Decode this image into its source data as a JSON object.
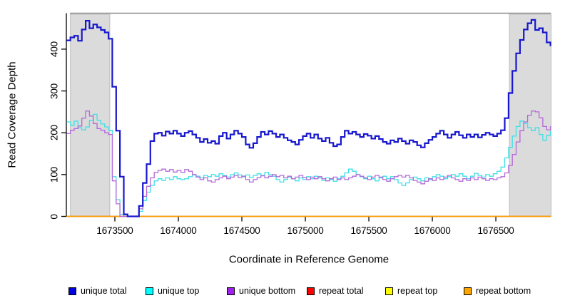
{
  "chart_data": {
    "type": "line",
    "title": "",
    "xlabel": "Coordinate in Reference Genome",
    "ylabel": "Read Coverage Depth",
    "xlim": [
      1673118,
      1676935
    ],
    "ylim": [
      0,
      486
    ],
    "x_ticks": [
      1673500,
      1674000,
      1674500,
      1675000,
      1675500,
      1676000,
      1676500
    ],
    "y_ticks": [
      0,
      100,
      200,
      300,
      400
    ],
    "grid": false,
    "legend_position": "bottom",
    "top_border_color": "#8c8c8c",
    "axis_color": "#000000",
    "shaded_regions": [
      {
        "x_start": 1673150,
        "x_end": 1673460,
        "fill": "#dbdbdb",
        "stroke": "#bdbdbd"
      },
      {
        "x_start": 1676607,
        "x_end": 1676935,
        "fill": "#dbdbdb",
        "stroke": "#bdbdbd"
      }
    ],
    "x_start": 1673120,
    "x_step": 30,
    "series": [
      {
        "name": "repeat total",
        "color": "#e00000",
        "width": 1.2,
        "flat_value": 0
      },
      {
        "name": "repeat top",
        "color": "#ffee00",
        "width": 1.2,
        "flat_value": 0
      },
      {
        "name": "repeat bottom",
        "color": "#ff9a00",
        "width": 1.6,
        "flat_value": 0
      },
      {
        "name": "unique top",
        "color": "#3fdfe8",
        "width": 1.3,
        "values": [
          226,
          218,
          228,
          212,
          207,
          214,
          230,
          244,
          230,
          221,
          214,
          206,
          95,
          40,
          5,
          0,
          0,
          0,
          0,
          12,
          38,
          58,
          74,
          85,
          90,
          86,
          92,
          88,
          95,
          90,
          88,
          90,
          95,
          99,
          96,
          92,
          98,
          95,
          100,
          96,
          102,
          98,
          94,
          100,
          104,
          99,
          95,
          99,
          93,
          98,
          102,
          98,
          105,
          100,
          96,
          88,
          82,
          88,
          94,
          90,
          85,
          92,
          88,
          95,
          90,
          96,
          92,
          86,
          92,
          88,
          84,
          90,
          96,
          104,
          113,
          108,
          100,
          95,
          90,
          96,
          90,
          85,
          92,
          96,
          90,
          95,
          88,
          80,
          74,
          80,
          88,
          94,
          90,
          85,
          92,
          88,
          95,
          100,
          96,
          90,
          95,
          100,
          96,
          102,
          96,
          90,
          96,
          103,
          98,
          94,
          100,
          96,
          102,
          108,
          118,
          140,
          165,
          192,
          215,
          228,
          222,
          212,
          205,
          212,
          196,
          182,
          194,
          204
        ]
      },
      {
        "name": "unique bottom",
        "color": "#b368d9",
        "width": 1.3,
        "values": [
          198,
          206,
          210,
          216,
          235,
          252,
          240,
          222,
          210,
          206,
          200,
          196,
          85,
          30,
          0,
          0,
          0,
          0,
          0,
          18,
          48,
          72,
          92,
          105,
          110,
          113,
          108,
          112,
          106,
          110,
          105,
          112,
          108,
          100,
          94,
          88,
          92,
          85,
          82,
          88,
          92,
          96,
          90,
          94,
          98,
          93,
          96,
          88,
          82,
          88,
          93,
          97,
          92,
          96,
          100,
          95,
          98,
          92,
          96,
          90,
          94,
          98,
          93,
          88,
          94,
          90,
          95,
          90,
          85,
          90,
          94,
          88,
          92,
          88,
          92,
          96,
          100,
          96,
          92,
          88,
          94,
          98,
          94,
          88,
          84,
          90,
          95,
          98,
          94,
          98,
          92,
          86,
          82,
          78,
          84,
          90,
          86,
          92,
          88,
          94,
          98,
          92,
          88,
          84,
          90,
          86,
          92,
          88,
          94,
          90,
          86,
          90,
          88,
          92,
          95,
          104,
          122,
          148,
          178,
          205,
          226,
          242,
          252,
          250,
          236,
          215,
          207,
          216
        ]
      },
      {
        "name": "unique total",
        "color": "#1717ce",
        "width": 2.2,
        "values": [
          421,
          428,
          432,
          420,
          447,
          468,
          450,
          459,
          452,
          446,
          440,
          425,
          310,
          205,
          95,
          5,
          0,
          0,
          0,
          25,
          80,
          125,
          180,
          198,
          200,
          193,
          203,
          198,
          205,
          198,
          192,
          200,
          204,
          196,
          188,
          178,
          185,
          176,
          180,
          174,
          192,
          200,
          186,
          196,
          205,
          198,
          190,
          172,
          164,
          175,
          190,
          202,
          196,
          204,
          198,
          190,
          196,
          188,
          182,
          178,
          172,
          183,
          192,
          198,
          188,
          196,
          186,
          180,
          188,
          176,
          168,
          172,
          190,
          205,
          198,
          202,
          196,
          190,
          197,
          193,
          186,
          192,
          185,
          178,
          174,
          182,
          178,
          186,
          180,
          174,
          182,
          178,
          170,
          165,
          175,
          183,
          190,
          198,
          205,
          196,
          188,
          196,
          202,
          194,
          188,
          196,
          190,
          196,
          189,
          195,
          200,
          196,
          192,
          198,
          206,
          235,
          295,
          348,
          390,
          422,
          447,
          462,
          470,
          446,
          450,
          440,
          416,
          407
        ]
      }
    ],
    "legend": [
      {
        "label": "unique total",
        "swatch": "#0000e0"
      },
      {
        "label": "unique top",
        "swatch": "#00ffff"
      },
      {
        "label": "unique bottom",
        "swatch": "#a020f0"
      },
      {
        "label": "repeat total",
        "swatch": "#ff0000"
      },
      {
        "label": "repeat top",
        "swatch": "#ffff00"
      },
      {
        "label": "repeat bottom",
        "swatch": "#ffa500"
      }
    ]
  }
}
